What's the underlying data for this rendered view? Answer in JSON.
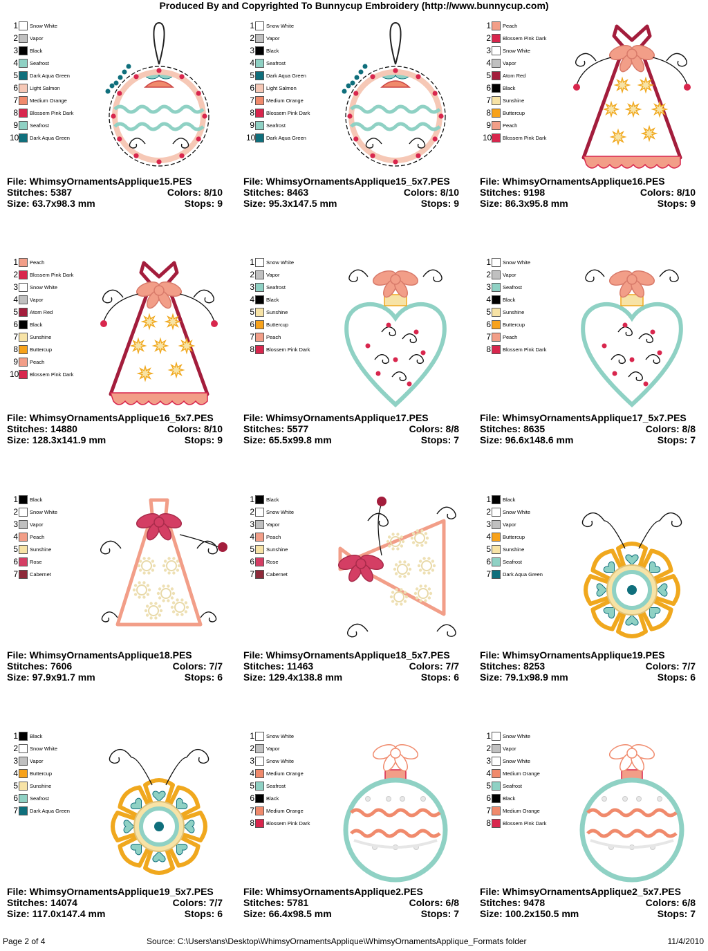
{
  "header": "Produced By and Copyrighted To Bunnycup Embroidery (http://www.bunnycup.com)",
  "footer": {
    "page": "Page 2 of 4",
    "source": "Source: C:\\Users\\ans\\Desktop\\WhimsyOrnamentsApplique\\WhimsyOrnamentsApplique_Formats folder",
    "date": "11/4/2010"
  },
  "labels": {
    "file": "File: ",
    "stitches": "Stitches: ",
    "size": "Size: ",
    "colors": "Colors: ",
    "stops": "Stops: "
  },
  "palette": {
    "Snow White": "#ffffff",
    "Vapor": "#c0c0c0",
    "Black": "#000000",
    "Seafrost": "#8fd1c4",
    "Dark Aqua Green": "#0f6f7c",
    "Light Salmon": "#f6c8b6",
    "Medium Orange": "#f08a6c",
    "Blossem Pink Dark": "#d8264d",
    "Peach": "#f29e88",
    "Atom Red": "#a31d3c",
    "Sunshine": "#f7e3a6",
    "Buttercup": "#f7a21b",
    "Rose": "#d43e64",
    "Cabernet": "#8e2a3a"
  },
  "designs": [
    {
      "file": "WhimsyOrnamentsApplique15.PES",
      "stitches": "5387",
      "colors": "8/10",
      "size": "63.7x98.3 mm",
      "stops": "9",
      "art": "ball",
      "thread_colors": [
        {
          "num": "1",
          "name": "Snow White"
        },
        {
          "num": "2",
          "name": "Vapor"
        },
        {
          "num": "3",
          "name": "Black"
        },
        {
          "num": "4",
          "name": "Seafrost"
        },
        {
          "num": "5",
          "name": "Dark Aqua Green"
        },
        {
          "num": "6",
          "name": "Light Salmon"
        },
        {
          "num": "7",
          "name": "Medium Orange"
        },
        {
          "num": "8",
          "name": "Blossem Pink Dark"
        },
        {
          "num": "9",
          "name": "Seafrost"
        },
        {
          "num": "10",
          "name": "Dark Aqua Green"
        }
      ]
    },
    {
      "file": "WhimsyOrnamentsApplique15_5x7.PES",
      "stitches": "8463",
      "colors": "8/10",
      "size": "95.3x147.5 mm",
      "stops": "9",
      "art": "ball",
      "thread_colors": [
        {
          "num": "1",
          "name": "Snow White"
        },
        {
          "num": "2",
          "name": "Vapor"
        },
        {
          "num": "3",
          "name": "Black"
        },
        {
          "num": "4",
          "name": "Seafrost"
        },
        {
          "num": "5",
          "name": "Dark Aqua Green"
        },
        {
          "num": "6",
          "name": "Light Salmon"
        },
        {
          "num": "7",
          "name": "Medium Orange"
        },
        {
          "num": "8",
          "name": "Blossem Pink Dark"
        },
        {
          "num": "9",
          "name": "Seafrost"
        },
        {
          "num": "10",
          "name": "Dark Aqua Green"
        }
      ]
    },
    {
      "file": "WhimsyOrnamentsApplique16.PES",
      "stitches": "9198",
      "colors": "8/10",
      "size": "86.3x95.8 mm",
      "stops": "9",
      "art": "bell",
      "thread_colors": [
        {
          "num": "1",
          "name": "Peach"
        },
        {
          "num": "2",
          "name": "Blossem Pink Dark"
        },
        {
          "num": "3",
          "name": "Snow White"
        },
        {
          "num": "4",
          "name": "Vapor"
        },
        {
          "num": "5",
          "name": "Atom Red"
        },
        {
          "num": "6",
          "name": "Black"
        },
        {
          "num": "7",
          "name": "Sunshine"
        },
        {
          "num": "8",
          "name": "Buttercup"
        },
        {
          "num": "9",
          "name": "Peach"
        },
        {
          "num": "10",
          "name": "Blossem Pink Dark"
        }
      ]
    },
    {
      "file": "WhimsyOrnamentsApplique16_5x7.PES",
      "stitches": "14880",
      "colors": "8/10",
      "size": "128.3x141.9 mm",
      "stops": "9",
      "art": "bell",
      "thread_colors": [
        {
          "num": "1",
          "name": "Peach"
        },
        {
          "num": "2",
          "name": "Blossem Pink Dark"
        },
        {
          "num": "3",
          "name": "Snow White"
        },
        {
          "num": "4",
          "name": "Vapor"
        },
        {
          "num": "5",
          "name": "Atom Red"
        },
        {
          "num": "6",
          "name": "Black"
        },
        {
          "num": "7",
          "name": "Sunshine"
        },
        {
          "num": "8",
          "name": "Buttercup"
        },
        {
          "num": "9",
          "name": "Peach"
        },
        {
          "num": "10",
          "name": "Blossem Pink Dark"
        }
      ]
    },
    {
      "file": "WhimsyOrnamentsApplique17.PES",
      "stitches": "5577",
      "colors": "8/8",
      "size": "65.5x99.8 mm",
      "stops": "7",
      "art": "heart",
      "thread_colors": [
        {
          "num": "1",
          "name": "Snow White"
        },
        {
          "num": "2",
          "name": "Vapor"
        },
        {
          "num": "3",
          "name": "Seafrost"
        },
        {
          "num": "4",
          "name": "Black"
        },
        {
          "num": "5",
          "name": "Sunshine"
        },
        {
          "num": "6",
          "name": "Buttercup"
        },
        {
          "num": "7",
          "name": "Peach"
        },
        {
          "num": "8",
          "name": "Blossem Pink Dark"
        }
      ]
    },
    {
      "file": "WhimsyOrnamentsApplique17_5x7.PES",
      "stitches": "8635",
      "colors": "8/8",
      "size": "96.6x148.6 mm",
      "stops": "7",
      "art": "heart",
      "thread_colors": [
        {
          "num": "1",
          "name": "Snow White"
        },
        {
          "num": "2",
          "name": "Vapor"
        },
        {
          "num": "3",
          "name": "Seafrost"
        },
        {
          "num": "4",
          "name": "Black"
        },
        {
          "num": "5",
          "name": "Sunshine"
        },
        {
          "num": "6",
          "name": "Buttercup"
        },
        {
          "num": "7",
          "name": "Peach"
        },
        {
          "num": "8",
          "name": "Blossem Pink Dark"
        }
      ]
    },
    {
      "file": "WhimsyOrnamentsApplique18.PES",
      "stitches": "7606",
      "colors": "7/7",
      "size": "97.9x91.7 mm",
      "stops": "6",
      "art": "bag",
      "thread_colors": [
        {
          "num": "1",
          "name": "Black"
        },
        {
          "num": "2",
          "name": "Snow White"
        },
        {
          "num": "3",
          "name": "Vapor"
        },
        {
          "num": "4",
          "name": "Peach"
        },
        {
          "num": "5",
          "name": "Sunshine"
        },
        {
          "num": "6",
          "name": "Rose"
        },
        {
          "num": "7",
          "name": "Cabernet"
        }
      ]
    },
    {
      "file": "WhimsyOrnamentsApplique18_5x7.PES",
      "stitches": "11463",
      "colors": "7/7",
      "size": "129.4x138.8 mm",
      "stops": "6",
      "art": "bag-rotated",
      "thread_colors": [
        {
          "num": "1",
          "name": "Black"
        },
        {
          "num": "2",
          "name": "Snow White"
        },
        {
          "num": "3",
          "name": "Vapor"
        },
        {
          "num": "4",
          "name": "Peach"
        },
        {
          "num": "5",
          "name": "Sunshine"
        },
        {
          "num": "6",
          "name": "Rose"
        },
        {
          "num": "7",
          "name": "Cabernet"
        }
      ]
    },
    {
      "file": "WhimsyOrnamentsApplique19.PES",
      "stitches": "8253",
      "colors": "7/7",
      "size": "79.1x98.9 mm",
      "stops": "6",
      "art": "flower",
      "thread_colors": [
        {
          "num": "1",
          "name": "Black"
        },
        {
          "num": "2",
          "name": "Snow White"
        },
        {
          "num": "3",
          "name": "Vapor"
        },
        {
          "num": "4",
          "name": "Buttercup"
        },
        {
          "num": "5",
          "name": "Sunshine"
        },
        {
          "num": "6",
          "name": "Seafrost"
        },
        {
          "num": "7",
          "name": "Dark Aqua Green"
        }
      ]
    },
    {
      "file": "WhimsyOrnamentsApplique19_5x7.PES",
      "stitches": "14074",
      "colors": "7/7",
      "size": "117.0x147.4 mm",
      "stops": "6",
      "art": "flower",
      "thread_colors": [
        {
          "num": "1",
          "name": "Black"
        },
        {
          "num": "2",
          "name": "Snow White"
        },
        {
          "num": "3",
          "name": "Vapor"
        },
        {
          "num": "4",
          "name": "Buttercup"
        },
        {
          "num": "5",
          "name": "Sunshine"
        },
        {
          "num": "6",
          "name": "Seafrost"
        },
        {
          "num": "7",
          "name": "Dark Aqua Green"
        }
      ]
    },
    {
      "file": "WhimsyOrnamentsApplique2.PES",
      "stitches": "5781",
      "colors": "6/8",
      "size": "66.4x98.5 mm",
      "stops": "7",
      "art": "round",
      "thread_colors": [
        {
          "num": "1",
          "name": "Snow White"
        },
        {
          "num": "2",
          "name": "Vapor"
        },
        {
          "num": "3",
          "name": "Snow White"
        },
        {
          "num": "4",
          "name": "Medium Orange"
        },
        {
          "num": "5",
          "name": "Seafrost"
        },
        {
          "num": "6",
          "name": "Black"
        },
        {
          "num": "7",
          "name": "Medium Orange"
        },
        {
          "num": "8",
          "name": "Blossem Pink Dark"
        }
      ]
    },
    {
      "file": "WhimsyOrnamentsApplique2_5x7.PES",
      "stitches": "9478",
      "colors": "6/8",
      "size": "100.2x150.5 mm",
      "stops": "7",
      "art": "round",
      "thread_colors": [
        {
          "num": "1",
          "name": "Snow White"
        },
        {
          "num": "2",
          "name": "Vapor"
        },
        {
          "num": "3",
          "name": "Snow White"
        },
        {
          "num": "4",
          "name": "Medium Orange"
        },
        {
          "num": "5",
          "name": "Seafrost"
        },
        {
          "num": "6",
          "name": "Black"
        },
        {
          "num": "7",
          "name": "Medium Orange"
        },
        {
          "num": "8",
          "name": "Blossem Pink Dark"
        }
      ]
    }
  ]
}
